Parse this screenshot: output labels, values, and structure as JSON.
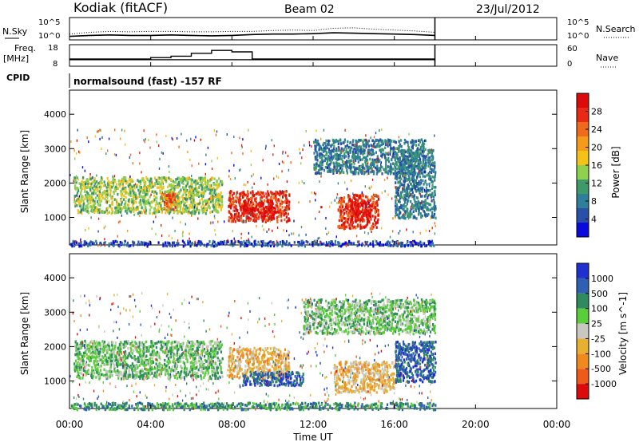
{
  "header": {
    "station": "Kodiak (fitACF)",
    "beam": "Beam 02",
    "date": "23/Jul/2012"
  },
  "labels": {
    "nsky": "N.Sky",
    "nsearch": "N.Search",
    "freq_line1": "Freq.",
    "freq_line2": "[MHz]",
    "nave": "Nave",
    "cpid": "CPID",
    "cpid_text": "normalsound (fast) -157 RF",
    "exp_ticks_left": [
      "10^5",
      "10^0"
    ],
    "exp_ticks_right": [
      "10^5",
      "10^0"
    ],
    "freq_ticks": [
      "18",
      "8"
    ],
    "nave_ticks": [
      "60",
      "0"
    ]
  },
  "colors": {
    "power": [
      "#0a0adc",
      "#2a4fa8",
      "#2f7f9a",
      "#3f9a6a",
      "#8fd14f",
      "#f5c21a",
      "#f59a1a",
      "#ef6a1a",
      "#e82a14",
      "#dc0a0a"
    ],
    "velocity": [
      "#1f2fd0",
      "#2f5fb0",
      "#2f8a5e",
      "#5acd3a",
      "#c8c8c0",
      "#e8b030",
      "#f08a20",
      "#ee5a18",
      "#dc0a0a"
    ]
  },
  "chart_data": [
    {
      "type": "line",
      "title": "",
      "xlabel": "",
      "ylabel": "N.Sky",
      "y2label": "N.Search",
      "ylim_log10": [
        0,
        5
      ],
      "x_hours": [
        0,
        1,
        2,
        3,
        4,
        5,
        6,
        7,
        8,
        9,
        10,
        11,
        12,
        13,
        14,
        15,
        16,
        17,
        18
      ],
      "series": [
        {
          "name": "N.Sky",
          "values_log10": [
            0.8,
            1.0,
            1.1,
            1.0,
            1.0,
            1.1,
            1.0,
            0.9,
            1.0,
            1.2,
            1.3,
            1.3,
            1.4,
            1.6,
            1.5,
            1.4,
            1.3,
            1.2,
            1.0
          ]
        },
        {
          "name": "N.Search",
          "values_log10": [
            1.3,
            1.7,
            1.9,
            1.8,
            1.9,
            1.9,
            1.8,
            1.8,
            1.9,
            1.9,
            2.1,
            2.2,
            2.1,
            2.6,
            2.7,
            2.4,
            2.2,
            2.0,
            1.7
          ]
        }
      ]
    },
    {
      "type": "line",
      "ylabel": "Freq. [MHz]",
      "y2label": "Nave",
      "ylim": [
        8,
        18
      ],
      "y2lim": [
        0,
        60
      ],
      "x_hours": [
        0,
        1,
        2,
        3,
        4,
        5,
        6,
        7,
        8,
        9,
        10,
        11,
        12,
        13,
        14,
        15,
        16,
        17,
        18
      ],
      "series": [
        {
          "name": "Freq.",
          "values": [
            11,
            11,
            11,
            11,
            11,
            11,
            11,
            11,
            11,
            11,
            11,
            11,
            11,
            11,
            11,
            11,
            11,
            11,
            10
          ]
        },
        {
          "name": "Nave",
          "values": [
            20,
            20,
            20,
            20,
            24,
            28,
            36,
            44,
            40,
            20,
            20,
            20,
            20,
            20,
            20,
            20,
            20,
            20,
            20
          ]
        }
      ]
    },
    {
      "type": "heatmap",
      "title": "",
      "xlabel": "",
      "ylabel": "Slant Range [km]",
      "colorbar_label": "Power [dB]",
      "colorbar_ticks": [
        "28",
        "24",
        "20",
        "16",
        "12",
        "8",
        "4"
      ],
      "ylim": [
        200,
        4700
      ],
      "xlim_hours": [
        0,
        24
      ],
      "y_ticks": [
        "4000",
        "3000",
        "2000",
        "1000"
      ],
      "data_window_hours": [
        0,
        18
      ],
      "regions": [
        {
          "t0": 0.2,
          "t1": 7.5,
          "r0": 1150,
          "r1": 2200,
          "level": 5
        },
        {
          "t0": 4.5,
          "t1": 5.2,
          "r0": 1250,
          "r1": 1750,
          "level": 8
        },
        {
          "t0": 7.8,
          "t1": 10.8,
          "r0": 900,
          "r1": 1800,
          "level": 9
        },
        {
          "t0": 8.5,
          "t1": 10.0,
          "r0": 1000,
          "r1": 1500,
          "level": 10
        },
        {
          "t0": 13.2,
          "t1": 15.2,
          "r0": 700,
          "r1": 1700,
          "level": 9
        },
        {
          "t0": 13.8,
          "t1": 14.8,
          "r0": 900,
          "r1": 1500,
          "level": 10
        },
        {
          "t0": 12.0,
          "t1": 17.5,
          "r0": 2300,
          "r1": 3300,
          "level": 3
        },
        {
          "t0": 16.0,
          "t1": 18.0,
          "r0": 1000,
          "r1": 3000,
          "level": 3
        },
        {
          "t0": 0.0,
          "t1": 18.0,
          "r0": 200,
          "r1": 350,
          "level": 2
        }
      ]
    },
    {
      "type": "heatmap",
      "title": "",
      "xlabel": "Time UT",
      "ylabel": "Slant Range [km]",
      "colorbar_label": "Velocity [m s^-1]",
      "colorbar_ticks": [
        "1000",
        "500",
        "100",
        "25",
        "-25",
        "-100",
        "-500",
        "-1000"
      ],
      "ylim": [
        200,
        4700
      ],
      "xlim_hours": [
        0,
        24
      ],
      "y_ticks": [
        "4000",
        "3000",
        "2000",
        "1000"
      ],
      "x_ticks": [
        "00:00",
        "04:00",
        "08:00",
        "12:00",
        "16:00",
        "20:00",
        "00:00"
      ],
      "data_window_hours": [
        0,
        18
      ],
      "regions": [
        {
          "t0": 0.2,
          "t1": 7.5,
          "r0": 1100,
          "r1": 2200,
          "level": 4
        },
        {
          "t0": 7.8,
          "t1": 10.8,
          "r0": 1100,
          "r1": 2000,
          "level": 6
        },
        {
          "t0": 8.5,
          "t1": 11.5,
          "r0": 900,
          "r1": 1300,
          "level": 2
        },
        {
          "t0": 13.0,
          "t1": 16.0,
          "r0": 700,
          "r1": 1600,
          "level": 6
        },
        {
          "t0": 11.5,
          "t1": 18.0,
          "r0": 2400,
          "r1": 3400,
          "level": 4
        },
        {
          "t0": 16.0,
          "t1": 18.0,
          "r0": 1000,
          "r1": 2200,
          "level": 2
        },
        {
          "t0": 0.0,
          "t1": 18.0,
          "r0": 200,
          "r1": 400,
          "level": 3
        }
      ]
    }
  ]
}
